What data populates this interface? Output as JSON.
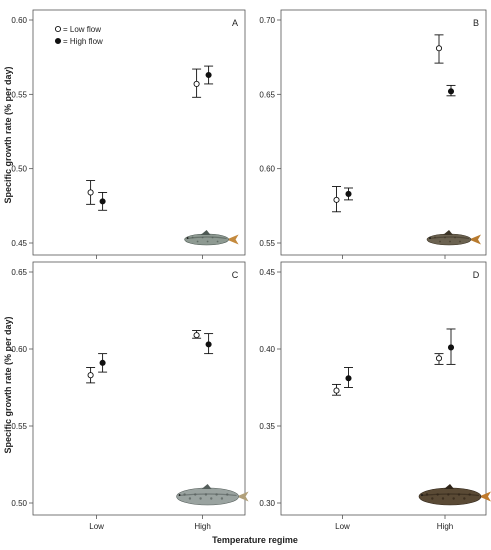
{
  "figure": {
    "ylabel": "Specific growth rate (% per day)",
    "xlabel": "Temperature regime",
    "legend": {
      "position": "top-left",
      "entries": [
        {
          "name": "= Low flow",
          "marker": "open-circle"
        },
        {
          "name": "= High flow",
          "marker": "filled-circle"
        }
      ]
    }
  },
  "colors": {
    "low_flow_fill": "#ffffff",
    "high_flow_fill": "#111111",
    "marker_stroke": "#111111",
    "frame": "#555555"
  },
  "chart_data": [
    {
      "type": "scatter",
      "panel": "A",
      "categories": [
        "Low",
        "High"
      ],
      "ylim": [
        0.45,
        0.6
      ],
      "yticks": [
        "0.45",
        "0.50",
        "0.55",
        "0.60"
      ],
      "fish_icon": "fish-illustration",
      "series": [
        {
          "name": "Low flow",
          "values": [
            0.484,
            0.557
          ],
          "lower": [
            0.476,
            0.548
          ],
          "upper": [
            0.492,
            0.567
          ]
        },
        {
          "name": "High flow",
          "values": [
            0.478,
            0.563
          ],
          "lower": [
            0.472,
            0.557
          ],
          "upper": [
            0.484,
            0.569
          ]
        }
      ]
    },
    {
      "type": "scatter",
      "panel": "B",
      "categories": [
        "Low",
        "High"
      ],
      "ylim": [
        0.55,
        0.7
      ],
      "yticks": [
        "0.55",
        "0.60",
        "0.65",
        "0.70"
      ],
      "fish_icon": "fish-illustration",
      "series": [
        {
          "name": "Low flow",
          "values": [
            0.579,
            0.681
          ],
          "lower": [
            0.571,
            0.671
          ],
          "upper": [
            0.588,
            0.69
          ]
        },
        {
          "name": "High flow",
          "values": [
            0.583,
            0.652
          ],
          "lower": [
            0.579,
            0.649
          ],
          "upper": [
            0.587,
            0.656
          ]
        }
      ]
    },
    {
      "type": "scatter",
      "panel": "C",
      "categories": [
        "Low",
        "High"
      ],
      "ylim": [
        0.5,
        0.65
      ],
      "yticks": [
        "0.50",
        "0.55",
        "0.60",
        "0.65"
      ],
      "fish_icon": "fish-illustration",
      "series": [
        {
          "name": "Low flow",
          "values": [
            0.583,
            0.609
          ],
          "lower": [
            0.578,
            0.607
          ],
          "upper": [
            0.588,
            0.612
          ]
        },
        {
          "name": "High flow",
          "values": [
            0.591,
            0.603
          ],
          "lower": [
            0.585,
            0.597
          ],
          "upper": [
            0.597,
            0.61
          ]
        }
      ]
    },
    {
      "type": "scatter",
      "panel": "D",
      "categories": [
        "Low",
        "High"
      ],
      "ylim": [
        0.3,
        0.45
      ],
      "yticks": [
        "0.30",
        "0.35",
        "0.40",
        "0.45"
      ],
      "fish_icon": "fish-illustration",
      "series": [
        {
          "name": "Low flow",
          "values": [
            0.373,
            0.394
          ],
          "lower": [
            0.37,
            0.39
          ],
          "upper": [
            0.377,
            0.397
          ]
        },
        {
          "name": "High flow",
          "values": [
            0.381,
            0.401
          ],
          "lower": [
            0.375,
            0.39
          ],
          "upper": [
            0.388,
            0.413
          ]
        }
      ]
    }
  ]
}
